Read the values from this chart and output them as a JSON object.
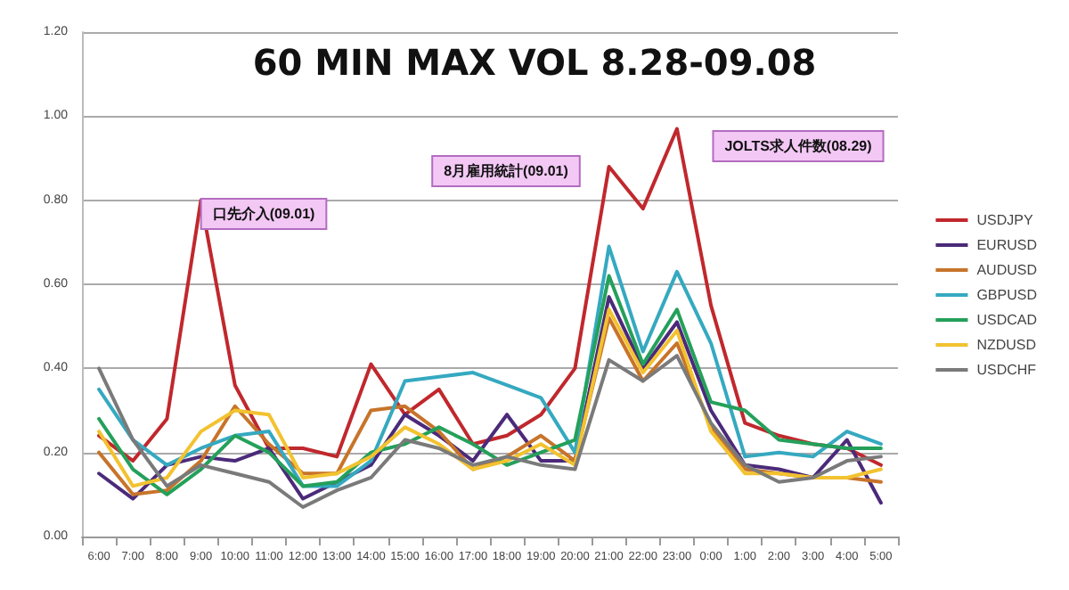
{
  "chart_data": {
    "type": "line",
    "title": "60 MIN MAX VOL 8.28-09.08",
    "categories": [
      "6:00",
      "7:00",
      "8:00",
      "9:00",
      "10:00",
      "11:00",
      "12:00",
      "13:00",
      "14:00",
      "15:00",
      "16:00",
      "17:00",
      "18:00",
      "19:00",
      "20:00",
      "21:00",
      "22:00",
      "23:00",
      "0:00",
      "1:00",
      "2:00",
      "3:00",
      "4:00",
      "5:00"
    ],
    "series": [
      {
        "name": "USDJPY",
        "color": "#c0282d",
        "values": [
          0.24,
          0.18,
          0.28,
          0.8,
          0.36,
          0.21,
          0.21,
          0.19,
          0.41,
          0.29,
          0.35,
          0.22,
          0.24,
          0.29,
          0.4,
          0.88,
          0.78,
          0.97,
          0.55,
          0.27,
          0.24,
          0.22,
          0.21,
          0.17
        ]
      },
      {
        "name": "EURUSD",
        "color": "#4b2a7a",
        "values": [
          0.15,
          0.09,
          0.17,
          0.19,
          0.18,
          0.21,
          0.09,
          0.13,
          0.17,
          0.29,
          0.24,
          0.18,
          0.29,
          0.18,
          0.18,
          0.57,
          0.4,
          0.51,
          0.3,
          0.17,
          0.16,
          0.14,
          0.23,
          0.08
        ]
      },
      {
        "name": "AUDUSD",
        "color": "#c7742a",
        "values": [
          0.2,
          0.1,
          0.11,
          0.18,
          0.31,
          0.22,
          0.15,
          0.15,
          0.3,
          0.31,
          0.25,
          0.16,
          0.19,
          0.24,
          0.18,
          0.52,
          0.37,
          0.46,
          0.26,
          0.16,
          0.15,
          0.14,
          0.14,
          0.13
        ]
      },
      {
        "name": "GBPUSD",
        "color": "#35a9c0",
        "values": [
          0.35,
          0.23,
          0.17,
          0.21,
          0.24,
          0.25,
          0.12,
          0.12,
          0.18,
          0.37,
          0.38,
          0.39,
          0.36,
          0.33,
          0.2,
          0.69,
          0.44,
          0.63,
          0.46,
          0.19,
          0.2,
          0.19,
          0.25,
          0.22
        ]
      },
      {
        "name": "USDCAD",
        "color": "#24a05a",
        "values": [
          0.28,
          0.16,
          0.1,
          0.16,
          0.24,
          0.2,
          0.12,
          0.13,
          0.2,
          0.22,
          0.26,
          0.22,
          0.17,
          0.2,
          0.23,
          0.62,
          0.41,
          0.54,
          0.32,
          0.3,
          0.23,
          0.22,
          0.21,
          0.21
        ]
      },
      {
        "name": "NZDUSD",
        "color": "#f2c230",
        "values": [
          0.25,
          0.12,
          0.14,
          0.25,
          0.3,
          0.29,
          0.14,
          0.15,
          0.19,
          0.26,
          0.22,
          0.16,
          0.18,
          0.22,
          0.17,
          0.54,
          0.39,
          0.49,
          0.25,
          0.15,
          0.15,
          0.14,
          0.14,
          0.16
        ]
      },
      {
        "name": "USDCHF",
        "color": "#7a7a7a",
        "values": [
          0.4,
          0.23,
          0.12,
          0.17,
          0.15,
          0.13,
          0.07,
          0.11,
          0.14,
          0.23,
          0.21,
          0.17,
          0.19,
          0.17,
          0.16,
          0.42,
          0.37,
          0.43,
          0.27,
          0.17,
          0.13,
          0.14,
          0.18,
          0.19
        ]
      }
    ],
    "ylim": [
      0,
      1.2
    ],
    "yticks": [
      {
        "value": 0,
        "label": "0.00"
      },
      {
        "value": 0.2,
        "label": "0.20"
      },
      {
        "value": 0.4,
        "label": "0.40"
      },
      {
        "value": 0.6,
        "label": "0.60"
      },
      {
        "value": 0.8,
        "label": "0.80"
      },
      {
        "value": 1.0,
        "label": "1.00"
      },
      {
        "value": 1.2,
        "label": "1.20"
      }
    ],
    "grid": "y",
    "legend": "right",
    "marker": "none",
    "line_style": "solid",
    "annotations": [
      "口先介入(09.01)",
      "8月雇用統計(09.01)",
      "JOLTS求人件数(08.29)"
    ]
  }
}
